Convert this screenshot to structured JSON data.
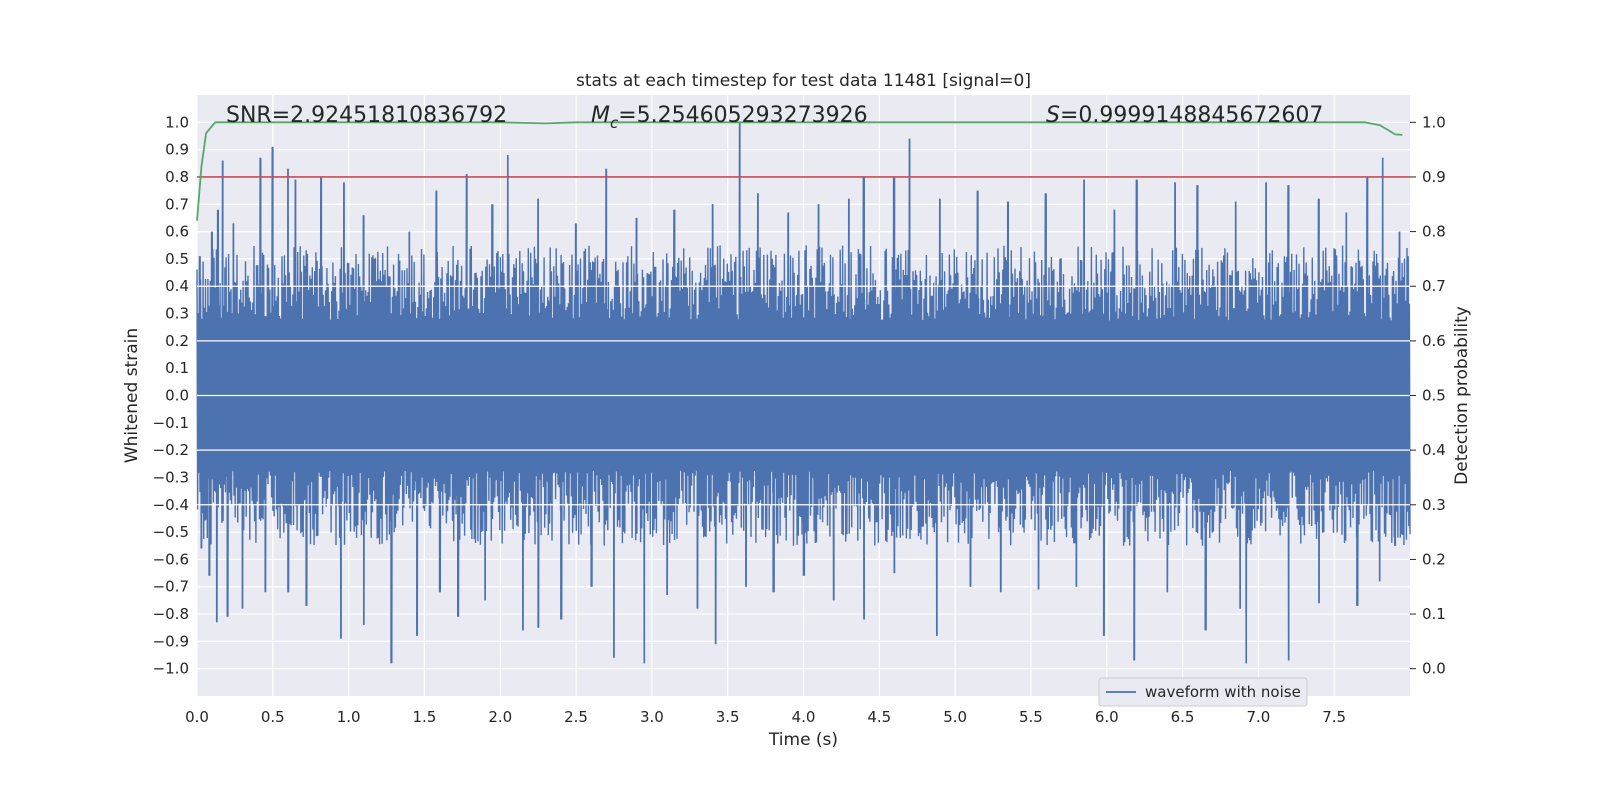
{
  "chart_data": {
    "type": "line",
    "title": "stats at each timestep for test data 11481 [signal=0]",
    "xlabel": "Time (s)",
    "ylabel": "Whitened strain",
    "ylabel_right": "Detection probability",
    "xlim": [
      0.0,
      8.0
    ],
    "ylim": [
      -1.1,
      1.1
    ],
    "ylim_right": [
      -0.05,
      1.05
    ],
    "x_ticks": [
      "0.0",
      "0.5",
      "1.0",
      "1.5",
      "2.0",
      "2.5",
      "3.0",
      "3.5",
      "4.0",
      "4.5",
      "5.0",
      "5.5",
      "6.0",
      "6.5",
      "7.0",
      "7.5"
    ],
    "y_ticks": [
      "1.0",
      "0.9",
      "0.8",
      "0.7",
      "0.6",
      "0.5",
      "0.4",
      "0.3",
      "0.2",
      "0.1",
      "0.0",
      "−0.1",
      "−0.2",
      "−0.3",
      "−0.4",
      "−0.5",
      "−0.6",
      "−0.7",
      "−0.8",
      "−0.9",
      "−1.0"
    ],
    "y_ticks_right": [
      "1.0",
      "0.9",
      "0.8",
      "0.7",
      "0.6",
      "0.5",
      "0.4",
      "0.3",
      "0.2",
      "0.1",
      "0.0"
    ],
    "grid": true,
    "legend": {
      "position": "lower-right",
      "entries": [
        "waveform with noise"
      ]
    },
    "annotations": {
      "snr": "SNR=2.92451810836792",
      "mc_symbol": "M",
      "mc_sub": "c",
      "mc_value": "=5.254605293273926",
      "s_symbol": "S",
      "s_value": "=0.9999148845672607"
    },
    "series": [
      {
        "name": "waveform with noise",
        "axis": "left",
        "color": "#4c72b0",
        "style": "dense noise trace",
        "envelope": {
          "typical_max": 0.5,
          "typical_min": -0.5
        },
        "peaks": [
          {
            "x": 0.02,
            "y": 0.51
          },
          {
            "x": 0.1,
            "y": 0.6
          },
          {
            "x": 0.14,
            "y": 0.68
          },
          {
            "x": 0.17,
            "y": 0.86
          },
          {
            "x": 0.24,
            "y": 0.63
          },
          {
            "x": 0.42,
            "y": 0.87
          },
          {
            "x": 0.5,
            "y": 0.91
          },
          {
            "x": 0.6,
            "y": 0.83
          },
          {
            "x": 0.65,
            "y": 0.79
          },
          {
            "x": 0.82,
            "y": 0.8
          },
          {
            "x": 0.97,
            "y": 0.78
          },
          {
            "x": 1.1,
            "y": 0.66
          },
          {
            "x": 1.4,
            "y": 0.6
          },
          {
            "x": 1.58,
            "y": 0.75
          },
          {
            "x": 1.78,
            "y": 0.81
          },
          {
            "x": 1.95,
            "y": 0.7
          },
          {
            "x": 2.05,
            "y": 0.88
          },
          {
            "x": 2.25,
            "y": 0.72
          },
          {
            "x": 2.5,
            "y": 0.63
          },
          {
            "x": 2.7,
            "y": 0.83
          },
          {
            "x": 2.9,
            "y": 0.65
          },
          {
            "x": 3.15,
            "y": 0.68
          },
          {
            "x": 3.4,
            "y": 0.7
          },
          {
            "x": 3.58,
            "y": 1.0
          },
          {
            "x": 3.7,
            "y": 0.74
          },
          {
            "x": 3.9,
            "y": 0.67
          },
          {
            "x": 4.1,
            "y": 0.7
          },
          {
            "x": 4.3,
            "y": 0.72
          },
          {
            "x": 4.4,
            "y": 0.8
          },
          {
            "x": 4.6,
            "y": 0.8
          },
          {
            "x": 4.7,
            "y": 0.94
          },
          {
            "x": 4.9,
            "y": 0.72
          },
          {
            "x": 5.15,
            "y": 0.75
          },
          {
            "x": 5.35,
            "y": 0.71
          },
          {
            "x": 5.6,
            "y": 0.74
          },
          {
            "x": 5.85,
            "y": 0.79
          },
          {
            "x": 6.05,
            "y": 0.68
          },
          {
            "x": 6.2,
            "y": 0.79
          },
          {
            "x": 6.45,
            "y": 0.78
          },
          {
            "x": 6.6,
            "y": 0.77
          },
          {
            "x": 6.85,
            "y": 0.71
          },
          {
            "x": 7.05,
            "y": 0.78
          },
          {
            "x": 7.2,
            "y": 0.77
          },
          {
            "x": 7.4,
            "y": 0.72
          },
          {
            "x": 7.58,
            "y": 0.67
          },
          {
            "x": 7.72,
            "y": 0.8
          },
          {
            "x": 7.82,
            "y": 0.87
          },
          {
            "x": 7.93,
            "y": 0.6
          }
        ],
        "troughs": [
          {
            "x": 0.03,
            "y": -0.56
          },
          {
            "x": 0.08,
            "y": -0.66
          },
          {
            "x": 0.13,
            "y": -0.83
          },
          {
            "x": 0.2,
            "y": -0.81
          },
          {
            "x": 0.3,
            "y": -0.78
          },
          {
            "x": 0.45,
            "y": -0.72
          },
          {
            "x": 0.6,
            "y": -0.72
          },
          {
            "x": 0.72,
            "y": -0.77
          },
          {
            "x": 0.95,
            "y": -0.89
          },
          {
            "x": 1.1,
            "y": -0.84
          },
          {
            "x": 1.28,
            "y": -0.98
          },
          {
            "x": 1.45,
            "y": -0.88
          },
          {
            "x": 1.6,
            "y": -0.72
          },
          {
            "x": 1.72,
            "y": -0.81
          },
          {
            "x": 1.9,
            "y": -0.75
          },
          {
            "x": 2.15,
            "y": -0.86
          },
          {
            "x": 2.25,
            "y": -0.85
          },
          {
            "x": 2.4,
            "y": -0.82
          },
          {
            "x": 2.6,
            "y": -0.7
          },
          {
            "x": 2.75,
            "y": -0.96
          },
          {
            "x": 2.95,
            "y": -0.98
          },
          {
            "x": 3.1,
            "y": -0.73
          },
          {
            "x": 3.3,
            "y": -0.78
          },
          {
            "x": 3.42,
            "y": -0.91
          },
          {
            "x": 3.62,
            "y": -0.7
          },
          {
            "x": 3.8,
            "y": -0.72
          },
          {
            "x": 4.0,
            "y": -0.66
          },
          {
            "x": 4.2,
            "y": -0.75
          },
          {
            "x": 4.4,
            "y": -0.82
          },
          {
            "x": 4.6,
            "y": -0.65
          },
          {
            "x": 4.88,
            "y": -0.88
          },
          {
            "x": 5.1,
            "y": -0.7
          },
          {
            "x": 5.3,
            "y": -0.72
          },
          {
            "x": 5.55,
            "y": -0.71
          },
          {
            "x": 5.8,
            "y": -0.7
          },
          {
            "x": 5.98,
            "y": -0.88
          },
          {
            "x": 6.18,
            "y": -0.97
          },
          {
            "x": 6.4,
            "y": -0.72
          },
          {
            "x": 6.65,
            "y": -0.86
          },
          {
            "x": 6.88,
            "y": -0.78
          },
          {
            "x": 6.92,
            "y": -0.98
          },
          {
            "x": 7.2,
            "y": -0.97
          },
          {
            "x": 7.4,
            "y": -0.76
          },
          {
            "x": 7.65,
            "y": -0.77
          },
          {
            "x": 7.8,
            "y": -0.68
          },
          {
            "x": 7.9,
            "y": -0.55
          }
        ]
      },
      {
        "name": "",
        "axis": "left",
        "color": "#c44e52",
        "x": [
          0.0,
          8.0
        ],
        "y": [
          0.8,
          0.8
        ]
      },
      {
        "name": "",
        "axis": "right",
        "color": "#55a868",
        "x": [
          0.0,
          0.03,
          0.06,
          0.12,
          0.3,
          1.0,
          2.0,
          2.3,
          2.5,
          3.0,
          4.0,
          5.0,
          6.0,
          7.0,
          7.5,
          7.7,
          7.8,
          7.86,
          7.9,
          7.95
        ],
        "y": [
          0.82,
          0.92,
          0.98,
          1.0,
          1.0,
          1.0,
          1.0,
          0.998,
          1.0,
          1.0,
          1.0,
          1.0,
          1.0,
          1.0,
          1.0,
          1.0,
          0.995,
          0.985,
          0.978,
          0.977
        ]
      }
    ]
  }
}
